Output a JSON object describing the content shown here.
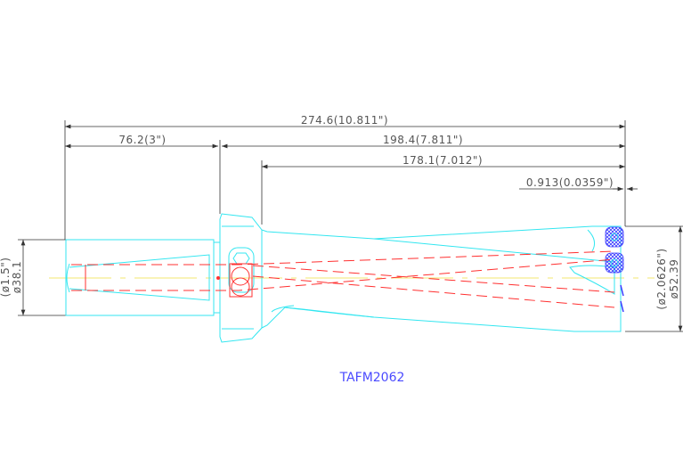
{
  "dimensions": {
    "overall_length": "274.6(10.811\")",
    "shank_length": "76.2(3\")",
    "body_length": "198.4(7.811\")",
    "flute_length": "178.1(7.012\")",
    "offset": "0.913(0.0359\")",
    "shank_dia_in": "(ø1.5\")",
    "shank_dia_mm": "ø38.1",
    "drill_dia_in": "(ø2.0626\")",
    "drill_dia_mm": "ø52.39"
  },
  "model_label": "TAFM2062",
  "colors": {
    "outline": "#33e6f0",
    "coolant": "#ff3030",
    "centerline": "#f0e040",
    "insert": "#3a3aff",
    "label": "#4a4aff"
  }
}
